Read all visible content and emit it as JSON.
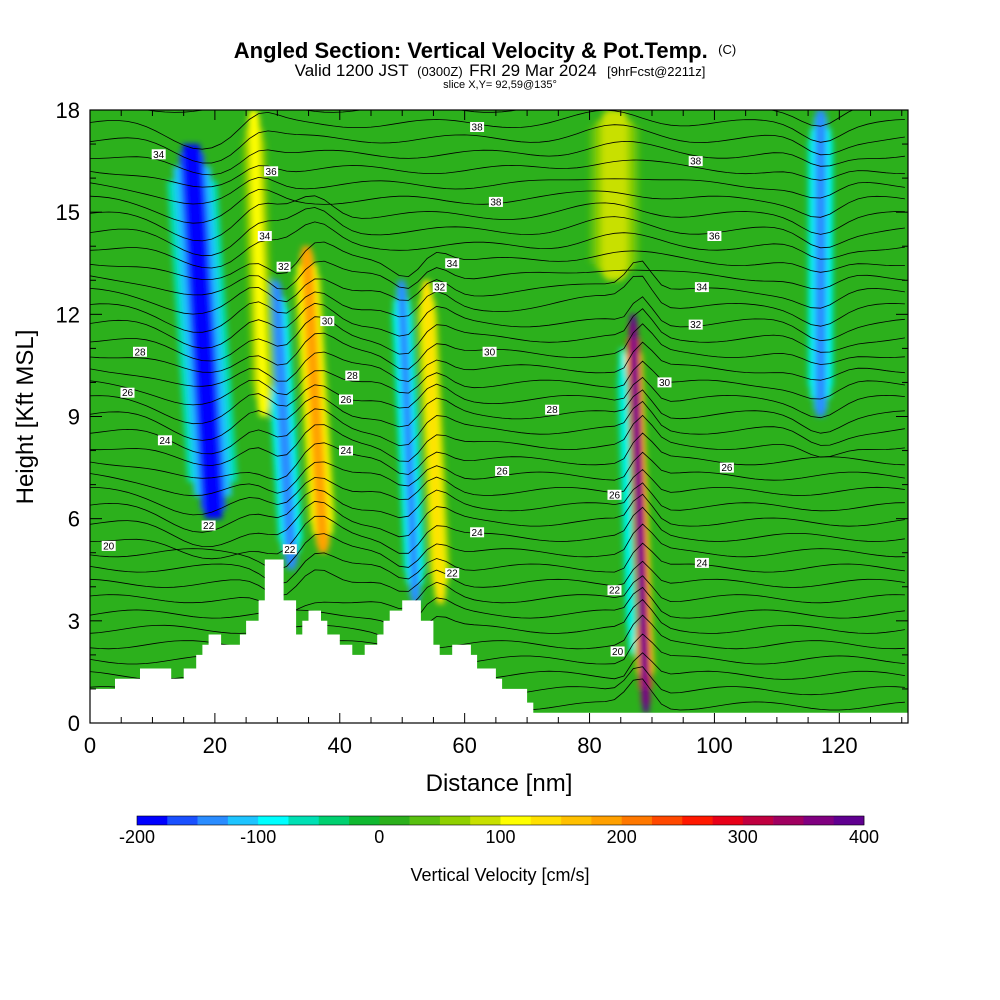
{
  "title": {
    "main": "Angled Section: Vertical Velocity & Pot.Temp.",
    "main_suffix": "(C)",
    "valid_prefix": "Valid 1200 JST",
    "valid_zulu": "(0300Z)",
    "valid_date": "FRI 29 Mar 2024",
    "forecast": "[9hrFcst@2211z]",
    "slice": "slice X,Y= 92,59@135°"
  },
  "chart_data": {
    "type": "heatmap",
    "xlabel": "Distance [nm]",
    "ylabel": "Height [Kft MSL]",
    "xlim": [
      0,
      131
    ],
    "ylim": [
      0,
      18
    ],
    "x_ticks": [
      0,
      20,
      40,
      60,
      80,
      100,
      120
    ],
    "y_ticks": [
      0,
      3,
      6,
      9,
      12,
      15,
      18
    ],
    "colorbar": {
      "title": "Vertical Velocity [cm/s]",
      "min": -200,
      "max": 400,
      "tick_values": [
        -200,
        -100,
        0,
        100,
        200,
        300,
        400
      ],
      "colors": [
        "#0000ff",
        "#1a50ff",
        "#2a8cff",
        "#1ec4ff",
        "#00ffff",
        "#00e0b4",
        "#00d070",
        "#10b830",
        "#2cb01c",
        "#58c010",
        "#90d000",
        "#c8e000",
        "#ffff00",
        "#ffe000",
        "#ffc000",
        "#ffa000",
        "#ff7800",
        "#ff4800",
        "#ff1800",
        "#e80018",
        "#c00040",
        "#a00060",
        "#800080",
        "#600090"
      ]
    },
    "vertical_velocity_features": [
      {
        "x_center": 18,
        "z_bottom": 6,
        "z_top": 17,
        "tilt": 0.55,
        "value": -190,
        "width": 4
      },
      {
        "x_center": 31,
        "z_bottom": 4.5,
        "z_top": 13,
        "tilt": 0.5,
        "value": -150,
        "width": 2
      },
      {
        "x_center": 36,
        "z_bottom": 5,
        "z_top": 14,
        "tilt": 0.5,
        "value": 180,
        "width": 2.2
      },
      {
        "x_center": 27,
        "z_bottom": 9,
        "z_top": 18,
        "tilt": 0.3,
        "value": 110,
        "width": 2
      },
      {
        "x_center": 51,
        "z_bottom": 3.5,
        "z_top": 13,
        "tilt": 0.4,
        "value": -140,
        "width": 1.8
      },
      {
        "x_center": 55,
        "z_bottom": 3.5,
        "z_top": 13,
        "tilt": 0.4,
        "value": 140,
        "width": 1.8
      },
      {
        "x_center": 88,
        "z_bottom": 0.3,
        "z_top": 12,
        "tilt": 0.3,
        "value": 380,
        "width": 1.4
      },
      {
        "x_center": 86,
        "z_bottom": 2,
        "z_top": 11,
        "tilt": 0.3,
        "value": -80,
        "width": 1
      },
      {
        "x_center": 117,
        "z_bottom": 9,
        "z_top": 18,
        "tilt": 0.0,
        "value": -130,
        "width": 2.2
      },
      {
        "x_center": 84,
        "z_bottom": 13,
        "z_top": 18,
        "tilt": 0.0,
        "value": 90,
        "width": 4
      }
    ],
    "terrain": [
      [
        0,
        1.0
      ],
      [
        4,
        1.0
      ],
      [
        4,
        1.3
      ],
      [
        8,
        1.3
      ],
      [
        8,
        1.6
      ],
      [
        13,
        1.6
      ],
      [
        13,
        1.3
      ],
      [
        15,
        1.3
      ],
      [
        15,
        1.6
      ],
      [
        17,
        1.6
      ],
      [
        17,
        2.0
      ],
      [
        18,
        2.0
      ],
      [
        18,
        2.3
      ],
      [
        19,
        2.3
      ],
      [
        19,
        2.6
      ],
      [
        21,
        2.6
      ],
      [
        21,
        2.3
      ],
      [
        24,
        2.3
      ],
      [
        24,
        2.6
      ],
      [
        25,
        2.6
      ],
      [
        25,
        3.0
      ],
      [
        27,
        3.0
      ],
      [
        27,
        3.6
      ],
      [
        28,
        3.6
      ],
      [
        28,
        4.8
      ],
      [
        31,
        4.8
      ],
      [
        31,
        3.6
      ],
      [
        33,
        3.6
      ],
      [
        33,
        2.6
      ],
      [
        34,
        2.6
      ],
      [
        34,
        3.0
      ],
      [
        35,
        3.0
      ],
      [
        35,
        3.3
      ],
      [
        37,
        3.3
      ],
      [
        37,
        3.0
      ],
      [
        38,
        3.0
      ],
      [
        38,
        2.6
      ],
      [
        40,
        2.6
      ],
      [
        40,
        2.3
      ],
      [
        42,
        2.3
      ],
      [
        42,
        2.0
      ],
      [
        44,
        2.0
      ],
      [
        44,
        2.3
      ],
      [
        46,
        2.3
      ],
      [
        46,
        2.6
      ],
      [
        47,
        2.6
      ],
      [
        47,
        3.0
      ],
      [
        48,
        3.0
      ],
      [
        48,
        3.3
      ],
      [
        50,
        3.3
      ],
      [
        50,
        3.6
      ],
      [
        53,
        3.6
      ],
      [
        53,
        3.0
      ],
      [
        55,
        3.0
      ],
      [
        55,
        2.3
      ],
      [
        56,
        2.3
      ],
      [
        56,
        2.0
      ],
      [
        58,
        2.0
      ],
      [
        58,
        2.3
      ],
      [
        61,
        2.3
      ],
      [
        61,
        2.0
      ],
      [
        62,
        2.0
      ],
      [
        62,
        1.6
      ],
      [
        65,
        1.6
      ],
      [
        65,
        1.3
      ],
      [
        66,
        1.3
      ],
      [
        66,
        1.0
      ],
      [
        70,
        1.0
      ],
      [
        70,
        0.6
      ],
      [
        71,
        0.6
      ],
      [
        71,
        0.3
      ],
      [
        131,
        0.3
      ]
    ],
    "theta_contour_labels": [
      {
        "x": 3,
        "z": 5.2,
        "text": "20"
      },
      {
        "x": 6,
        "z": 9.7,
        "text": "26"
      },
      {
        "x": 8,
        "z": 10.9,
        "text": "28"
      },
      {
        "x": 12,
        "z": 8.3,
        "text": "24"
      },
      {
        "x": 11,
        "z": 16.7,
        "text": "34"
      },
      {
        "x": 19,
        "z": 5.8,
        "text": "22"
      },
      {
        "x": 29,
        "z": 16.2,
        "text": "36"
      },
      {
        "x": 28,
        "z": 14.3,
        "text": "34"
      },
      {
        "x": 31,
        "z": 13.4,
        "text": "32"
      },
      {
        "x": 32,
        "z": 5.1,
        "text": "22"
      },
      {
        "x": 38,
        "z": 11.8,
        "text": "30"
      },
      {
        "x": 42,
        "z": 10.2,
        "text": "28"
      },
      {
        "x": 41,
        "z": 9.5,
        "text": "26"
      },
      {
        "x": 41,
        "z": 8.0,
        "text": "24"
      },
      {
        "x": 56,
        "z": 12.8,
        "text": "32"
      },
      {
        "x": 58,
        "z": 13.5,
        "text": "34"
      },
      {
        "x": 58,
        "z": 4.4,
        "text": "22"
      },
      {
        "x": 62,
        "z": 17.5,
        "text": "38"
      },
      {
        "x": 65,
        "z": 15.3,
        "text": "38"
      },
      {
        "x": 64,
        "z": 10.9,
        "text": "30"
      },
      {
        "x": 62,
        "z": 5.6,
        "text": "24"
      },
      {
        "x": 66,
        "z": 7.4,
        "text": "26"
      },
      {
        "x": 74,
        "z": 9.2,
        "text": "28"
      },
      {
        "x": 84,
        "z": 6.7,
        "text": "26"
      },
      {
        "x": 84,
        "z": 3.9,
        "text": "22"
      },
      {
        "x": 84.5,
        "z": 2.1,
        "text": "20"
      },
      {
        "x": 92,
        "z": 10.0,
        "text": "30"
      },
      {
        "x": 97,
        "z": 11.7,
        "text": "32"
      },
      {
        "x": 98,
        "z": 12.8,
        "text": "34"
      },
      {
        "x": 100,
        "z": 14.3,
        "text": "36"
      },
      {
        "x": 97,
        "z": 16.5,
        "text": "38"
      },
      {
        "x": 102,
        "z": 7.5,
        "text": "26"
      },
      {
        "x": 98,
        "z": 4.7,
        "text": "24"
      }
    ]
  }
}
